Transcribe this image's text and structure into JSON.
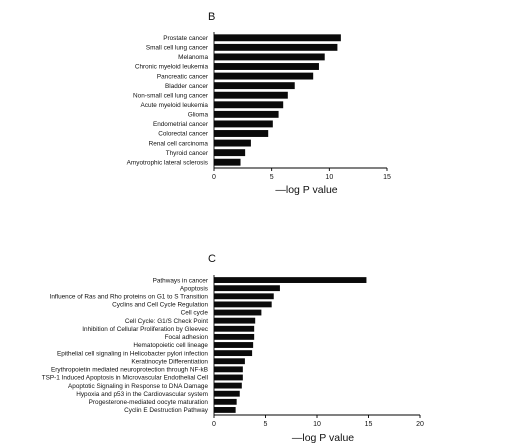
{
  "chart_data": [
    {
      "type": "bar",
      "orientation": "horizontal",
      "panel_label": "B",
      "categories": [
        "Prostate cancer",
        "Small cell lung cancer",
        "Melanoma",
        "Chronic myeloid leukemia",
        "Pancreatic cancer",
        "Bladder cancer",
        "Non-small cell lung cancer",
        "Acute myeloid leukemia",
        "Glioma",
        "Endometrial cancer",
        "Colorectal cancer",
        "Renal cell carcinoma",
        "Thyroid cancer",
        "Amyotrophic lateral sclerosis"
      ],
      "values": [
        11.0,
        10.7,
        9.6,
        9.1,
        8.6,
        7.0,
        6.4,
        6.0,
        5.6,
        5.1,
        4.7,
        3.2,
        2.7,
        2.3
      ],
      "xlabel": "—log P value",
      "xlim": [
        0,
        15
      ],
      "xticks": [
        "0",
        "5",
        "10",
        "15"
      ],
      "grid": false
    },
    {
      "type": "bar",
      "orientation": "horizontal",
      "panel_label": "C",
      "categories": [
        "Pathways in cancer",
        "Apoptosis",
        "Influence of Ras and Rho proteins on G1 to S Transition",
        "Cyclins and Cell Cycle Regulation",
        "Cell cycle",
        "Cell Cycle: G1/S Check Point",
        "Inhibition of Cellular Proliferation by Gleevec",
        "Focal adhesion",
        "Hematopoietic cell lineage",
        "Epithelial cell signaling in Helicobacter pylori infection",
        "Keratinocyte Differentiation",
        "Erythropoietin mediated neuroprotection through NF-kB",
        "TSP-1 Induced Apoptosis in Microvascular Endothelial Cell",
        "Apoptotic Signaling in Response to DNA Damage",
        "Hypoxia and p53 in the Cardiovascular system",
        "Progesterone-mediated oocyte maturation",
        "Cyclin E Destruction Pathway"
      ],
      "values": [
        14.8,
        6.4,
        5.8,
        5.6,
        4.6,
        4.0,
        3.9,
        3.9,
        3.8,
        3.7,
        3.0,
        2.8,
        2.8,
        2.7,
        2.5,
        2.2,
        2.1
      ],
      "xlabel": "—log P value",
      "xlim": [
        0,
        20
      ],
      "xticks": [
        "0",
        "5",
        "10",
        "15",
        "20"
      ],
      "grid": false
    }
  ]
}
